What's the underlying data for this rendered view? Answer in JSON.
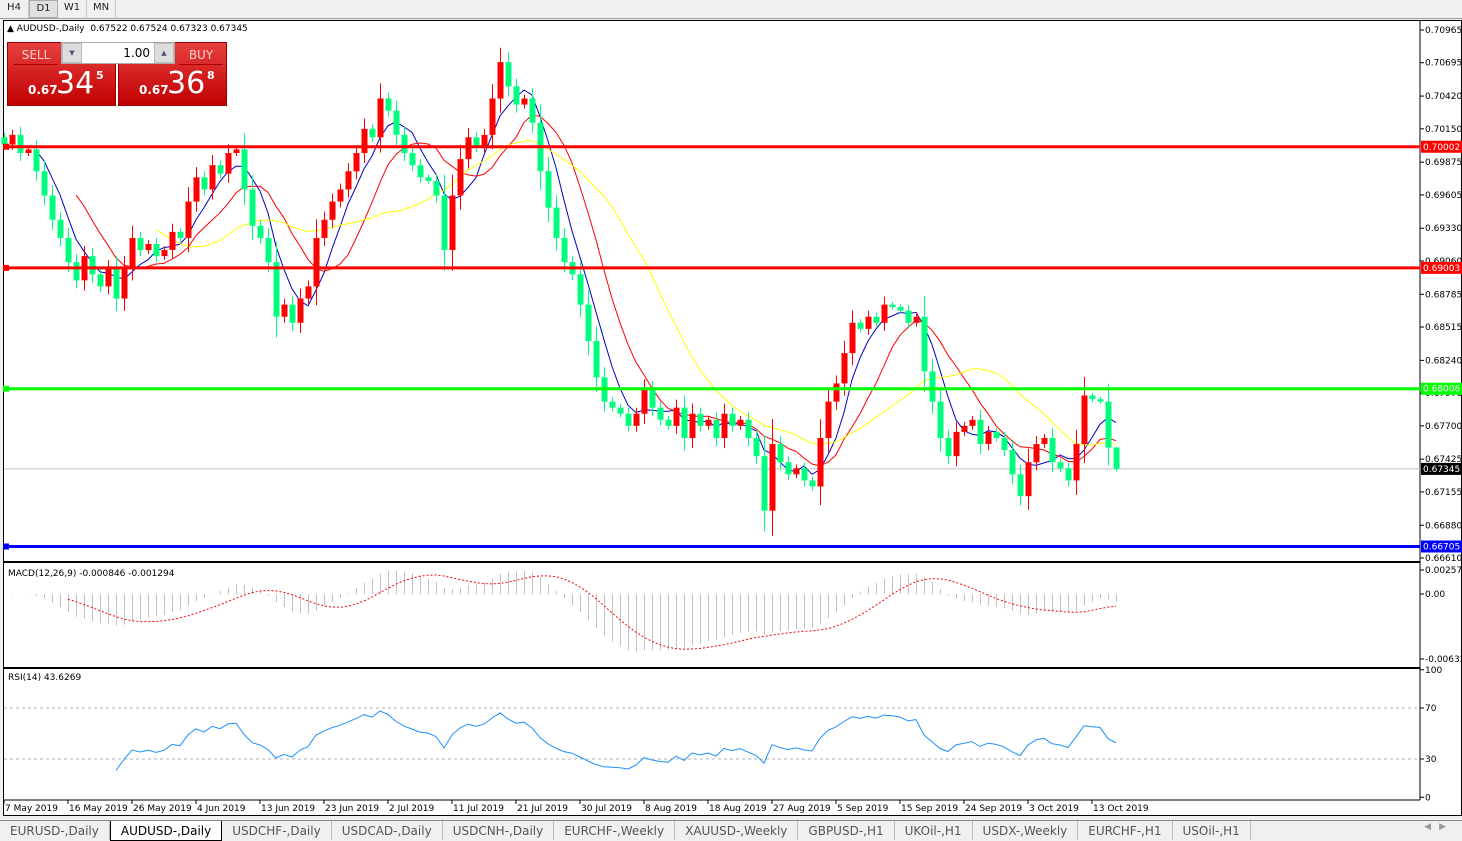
{
  "timeframes": [
    "H4",
    "D1",
    "W1",
    "MN"
  ],
  "active_timeframe": "D1",
  "header": {
    "symbol": "AUDUSD-,Daily",
    "ohlc": "0.67522 0.67524 0.67323 0.67345"
  },
  "trade_panel": {
    "sell_label": "SELL",
    "buy_label": "BUY",
    "lot": "1.00",
    "sell_prefix": "0.67",
    "sell_big": "34",
    "sell_sup": "5",
    "buy_prefix": "0.67",
    "buy_big": "36",
    "buy_sup": "8",
    "color": "#d01010"
  },
  "chart_data": [
    {
      "type": "candlestick",
      "symbol": "AUDUSD-",
      "timeframe": "Daily",
      "ylim": [
        0.6661,
        0.70965
      ],
      "yticks": [
        "0.70965",
        "0.70695",
        "0.70420",
        "0.70150",
        "0.69875",
        "0.69605",
        "0.69330",
        "0.69060",
        "0.68785",
        "0.68515",
        "0.68240",
        "0.67970",
        "0.67700",
        "0.67425",
        "0.67155",
        "0.66880",
        "0.66610"
      ],
      "xticks": [
        "7 May 2019",
        "16 May 2019",
        "26 May 2019",
        "4 Jun 2019",
        "13 Jun 2019",
        "23 Jun 2019",
        "2 Jul 2019",
        "11 Jul 2019",
        "21 Jul 2019",
        "30 Jul 2019",
        "8 Aug 2019",
        "18 Aug 2019",
        "27 Aug 2019",
        "5 Sep 2019",
        "15 Sep 2019",
        "24 Sep 2019",
        "3 Oct 2019",
        "13 Oct 2019"
      ],
      "up_color": "#ff0000",
      "down_color": "#00ff7f",
      "close": [
        0.7002,
        0.701,
        0.6995,
        0.6998,
        0.698,
        0.696,
        0.694,
        0.6925,
        0.6905,
        0.689,
        0.691,
        0.6895,
        0.6885,
        0.69,
        0.6875,
        0.69,
        0.6925,
        0.6915,
        0.692,
        0.691,
        0.6915,
        0.693,
        0.6925,
        0.6955,
        0.6975,
        0.6965,
        0.6985,
        0.6978,
        0.6995,
        0.6998,
        0.6965,
        0.6935,
        0.6925,
        0.6905,
        0.686,
        0.687,
        0.6855,
        0.6875,
        0.6885,
        0.6925,
        0.694,
        0.6955,
        0.6965,
        0.698,
        0.6995,
        0.7015,
        0.7008,
        0.704,
        0.703,
        0.701,
        0.6995,
        0.6985,
        0.6975,
        0.6972,
        0.696,
        0.6915,
        0.696,
        0.699,
        0.7008,
        0.7,
        0.701,
        0.704,
        0.707,
        0.705,
        0.7035,
        0.704,
        0.702,
        0.698,
        0.695,
        0.6925,
        0.6905,
        0.6895,
        0.687,
        0.684,
        0.681,
        0.679,
        0.6785,
        0.678,
        0.677,
        0.678,
        0.68,
        0.6785,
        0.6775,
        0.677,
        0.6785,
        0.676,
        0.678,
        0.677,
        0.6775,
        0.676,
        0.678,
        0.677,
        0.6775,
        0.676,
        0.6745,
        0.67,
        0.6755,
        0.674,
        0.673,
        0.6735,
        0.6725,
        0.672,
        0.676,
        0.679,
        0.6805,
        0.683,
        0.6855,
        0.685,
        0.686,
        0.6855,
        0.687,
        0.6868,
        0.6865,
        0.6855,
        0.686,
        0.6815,
        0.679,
        0.676,
        0.6745,
        0.6765,
        0.677,
        0.6775,
        0.6755,
        0.6765,
        0.676,
        0.675,
        0.673,
        0.6712,
        0.674,
        0.6755,
        0.676,
        0.674,
        0.6735,
        0.6725,
        0.6755,
        0.6795,
        0.6792,
        0.679,
        0.6752,
        0.67345
      ],
      "last_ohlc": {
        "open": 0.67522,
        "high": 0.67524,
        "low": 0.67323,
        "close": 0.67345
      },
      "moving_averages": [
        {
          "color": "#0000cc"
        },
        {
          "color": "#ff0000"
        },
        {
          "color": "#ffff00"
        }
      ],
      "hlines": [
        {
          "price": "0.70002",
          "color": "#ff0000"
        },
        {
          "price": "0.69003",
          "color": "#ff0000"
        },
        {
          "price": "0.68006",
          "color": "#00ff00"
        },
        {
          "price": "0.66705",
          "color": "#0000ff"
        }
      ],
      "current_price": "0.67345"
    },
    {
      "type": "bar",
      "indicator": "MACD",
      "label": "MACD(12,26,9) -0.000846 -0.001294",
      "yticks": [
        "0.002574",
        "0.00",
        "-0.006326"
      ],
      "ylim": [
        -0.006326,
        0.002574
      ],
      "histogram_color": "#c0c0c0",
      "signal_color": "#ff0000"
    },
    {
      "type": "line",
      "indicator": "RSI",
      "label": "RSI(14) 43.6269",
      "yticks": [
        "100",
        "70",
        "30",
        "0"
      ],
      "ylim": [
        0,
        100
      ],
      "levels": [
        70,
        30
      ],
      "color": "#1e90ff"
    }
  ],
  "symbol_tabs": [
    "EURUSD-,Daily",
    "AUDUSD-,Daily",
    "USDCHF-,Daily",
    "USDCAD-,Daily",
    "USDCNH-,Daily",
    "EURCHF-,Weekly",
    "XAUUSD-,Weekly",
    "GBPUSD-,H1",
    "UKOil-,H1",
    "USDX-,Weekly",
    "EURCHF-,H1",
    "USOil-,H1"
  ],
  "active_tab": "AUDUSD-,Daily"
}
